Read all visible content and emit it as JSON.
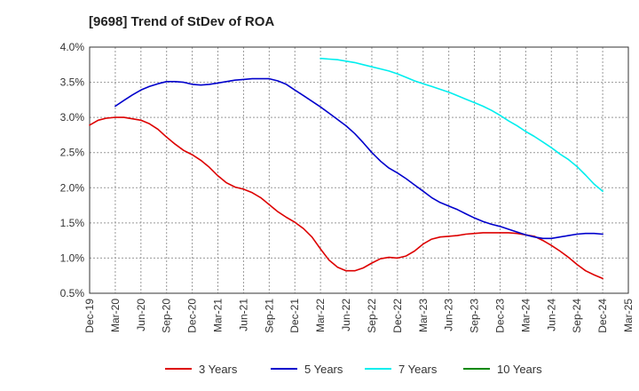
{
  "chart_data": {
    "type": "line",
    "title": "[9698]  Trend of StDev of ROA",
    "xlabel": "",
    "ylabel": "",
    "x_ticks": [
      "Dec-19",
      "Mar-20",
      "Jun-20",
      "Sep-20",
      "Dec-20",
      "Mar-21",
      "Jun-21",
      "Sep-21",
      "Dec-21",
      "Mar-22",
      "Jun-22",
      "Sep-22",
      "Dec-22",
      "Mar-23",
      "Jun-23",
      "Sep-23",
      "Dec-23",
      "Mar-24",
      "Jun-24",
      "Sep-24",
      "Dec-24",
      "Mar-25"
    ],
    "y_ticks": [
      "0.5%",
      "1.0%",
      "1.5%",
      "2.0%",
      "2.5%",
      "3.0%",
      "3.5%",
      "4.0%"
    ],
    "y_tick_values": [
      0.5,
      1.0,
      1.5,
      2.0,
      2.5,
      3.0,
      3.5,
      4.0
    ],
    "ylim": [
      0.5,
      4.0
    ],
    "y_unit": "%",
    "grid": true,
    "legend_position": "bottom",
    "series": [
      {
        "name": "3 Years",
        "color": "#dd0000",
        "x": [
          "2019-12",
          "2020-01",
          "2020-02",
          "2020-03",
          "2020-04",
          "2020-05",
          "2020-06",
          "2020-07",
          "2020-08",
          "2020-09",
          "2020-10",
          "2020-11",
          "2020-12",
          "2021-01",
          "2021-02",
          "2021-03",
          "2021-04",
          "2021-05",
          "2021-06",
          "2021-07",
          "2021-08",
          "2021-09",
          "2021-10",
          "2021-11",
          "2021-12",
          "2022-01",
          "2022-02",
          "2022-03",
          "2022-04",
          "2022-05",
          "2022-06",
          "2022-07",
          "2022-08",
          "2022-09",
          "2022-10",
          "2022-11",
          "2022-12",
          "2023-01",
          "2023-02",
          "2023-03",
          "2023-04",
          "2023-05",
          "2023-06",
          "2023-07",
          "2023-08",
          "2023-09",
          "2023-10",
          "2023-11",
          "2023-12",
          "2024-01",
          "2024-02",
          "2024-03",
          "2024-04",
          "2024-05",
          "2024-06",
          "2024-07",
          "2024-08",
          "2024-09",
          "2024-10",
          "2024-11",
          "2024-12"
        ],
        "values": [
          2.89,
          2.96,
          2.99,
          3.0,
          3.0,
          2.98,
          2.96,
          2.91,
          2.83,
          2.72,
          2.62,
          2.53,
          2.47,
          2.39,
          2.29,
          2.17,
          2.07,
          2.01,
          1.98,
          1.93,
          1.86,
          1.76,
          1.66,
          1.58,
          1.51,
          1.42,
          1.3,
          1.13,
          0.97,
          0.87,
          0.82,
          0.82,
          0.86,
          0.93,
          0.99,
          1.01,
          1.0,
          1.03,
          1.1,
          1.2,
          1.27,
          1.3,
          1.31,
          1.32,
          1.34,
          1.35,
          1.36,
          1.36,
          1.36,
          1.36,
          1.35,
          1.33,
          1.31,
          1.25,
          1.18,
          1.1,
          1.01,
          0.91,
          0.82,
          0.76,
          0.71
        ]
      },
      {
        "name": "5 Years",
        "color": "#0000cc",
        "x": [
          "2020-03",
          "2020-04",
          "2020-05",
          "2020-06",
          "2020-07",
          "2020-08",
          "2020-09",
          "2020-10",
          "2020-11",
          "2020-12",
          "2021-01",
          "2021-02",
          "2021-03",
          "2021-04",
          "2021-05",
          "2021-06",
          "2021-07",
          "2021-08",
          "2021-09",
          "2021-10",
          "2021-11",
          "2021-12",
          "2022-01",
          "2022-02",
          "2022-03",
          "2022-04",
          "2022-05",
          "2022-06",
          "2022-07",
          "2022-08",
          "2022-09",
          "2022-10",
          "2022-11",
          "2022-12",
          "2023-01",
          "2023-02",
          "2023-03",
          "2023-04",
          "2023-05",
          "2023-06",
          "2023-07",
          "2023-08",
          "2023-09",
          "2023-10",
          "2023-11",
          "2023-12",
          "2024-01",
          "2024-02",
          "2024-03",
          "2024-04",
          "2024-05",
          "2024-06",
          "2024-07",
          "2024-08",
          "2024-09",
          "2024-10",
          "2024-11",
          "2024-12"
        ],
        "values": [
          3.16,
          3.24,
          3.32,
          3.39,
          3.44,
          3.48,
          3.51,
          3.51,
          3.5,
          3.47,
          3.46,
          3.47,
          3.49,
          3.51,
          3.53,
          3.54,
          3.55,
          3.55,
          3.55,
          3.52,
          3.47,
          3.39,
          3.31,
          3.23,
          3.15,
          3.06,
          2.97,
          2.88,
          2.77,
          2.64,
          2.5,
          2.38,
          2.28,
          2.21,
          2.13,
          2.04,
          1.95,
          1.86,
          1.79,
          1.74,
          1.69,
          1.63,
          1.57,
          1.52,
          1.48,
          1.45,
          1.41,
          1.37,
          1.33,
          1.3,
          1.28,
          1.28,
          1.3,
          1.32,
          1.34,
          1.35,
          1.35,
          1.34
        ]
      },
      {
        "name": "7 Years",
        "color": "#00eeee",
        "x": [
          "2022-03",
          "2022-04",
          "2022-05",
          "2022-06",
          "2022-07",
          "2022-08",
          "2022-09",
          "2022-10",
          "2022-11",
          "2022-12",
          "2023-01",
          "2023-02",
          "2023-03",
          "2023-04",
          "2023-05",
          "2023-06",
          "2023-07",
          "2023-08",
          "2023-09",
          "2023-10",
          "2023-11",
          "2023-12",
          "2024-01",
          "2024-02",
          "2024-03",
          "2024-04",
          "2024-05",
          "2024-06",
          "2024-07",
          "2024-08",
          "2024-09",
          "2024-10",
          "2024-11",
          "2024-12"
        ],
        "values": [
          3.84,
          3.83,
          3.82,
          3.8,
          3.78,
          3.75,
          3.72,
          3.69,
          3.66,
          3.62,
          3.57,
          3.52,
          3.48,
          3.44,
          3.4,
          3.36,
          3.31,
          3.26,
          3.21,
          3.16,
          3.1,
          3.03,
          2.95,
          2.88,
          2.8,
          2.73,
          2.65,
          2.57,
          2.48,
          2.4,
          2.3,
          2.18,
          2.05,
          1.95
        ]
      },
      {
        "name": "10 Years",
        "color": "#008800",
        "x": [],
        "values": []
      }
    ]
  }
}
